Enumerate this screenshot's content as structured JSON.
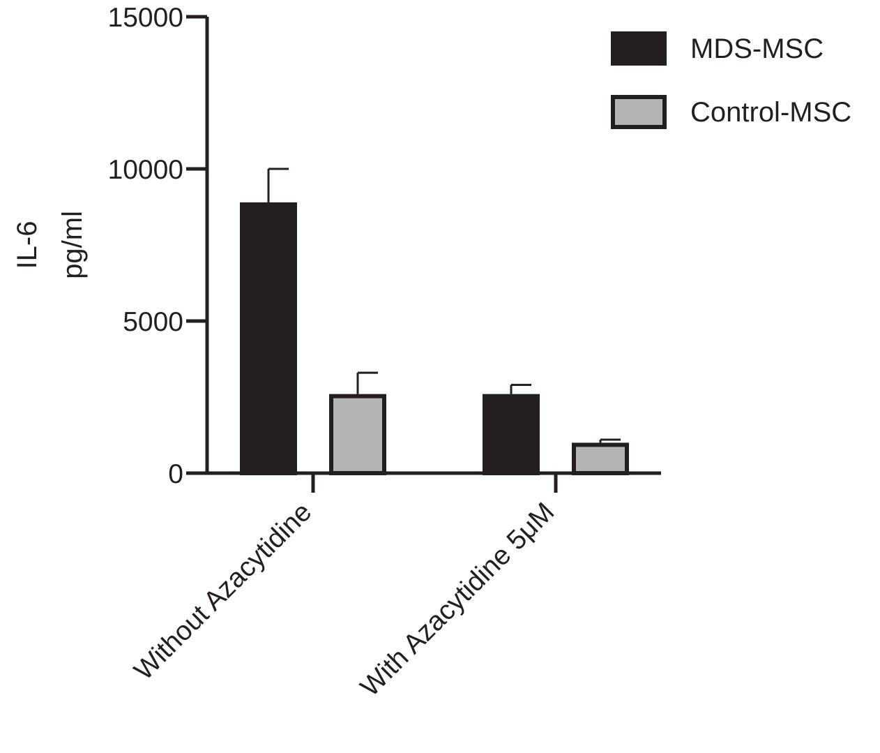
{
  "chart_data": {
    "type": "bar",
    "ylabel": [
      "IL-6",
      "pg/ml"
    ],
    "ylim": [
      0,
      15000
    ],
    "yticks": [
      0,
      5000,
      10000,
      15000
    ],
    "categories": [
      "Without Azacytidine",
      "With Azacytidine 5μM"
    ],
    "series": [
      {
        "name": "MDS-MSC",
        "values": [
          8900,
          2600
        ],
        "errors": [
          1100,
          300
        ],
        "color": "#231f20"
      },
      {
        "name": "Control-MSC",
        "values": [
          2600,
          1000
        ],
        "errors": [
          700,
          100
        ],
        "color": "#b3b4b6"
      }
    ],
    "legend_position": "top-right",
    "grid": false
  }
}
